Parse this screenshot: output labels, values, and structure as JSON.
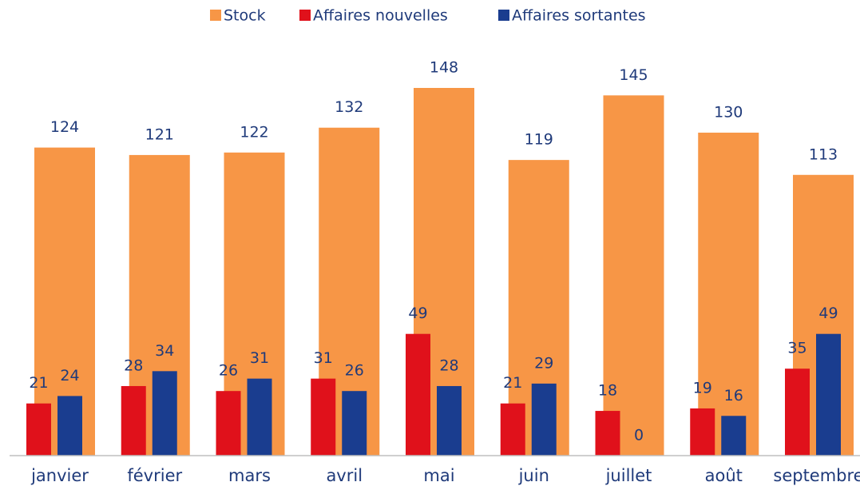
{
  "chart_data": {
    "type": "bar",
    "categories": [
      "janvier",
      "février",
      "mars",
      "avril",
      "mai",
      "juin",
      "juillet",
      "août",
      "septembre"
    ],
    "series": [
      {
        "name": "Stock",
        "color": "#f79646",
        "values": [
          124,
          121,
          122,
          132,
          148,
          119,
          145,
          130,
          113
        ]
      },
      {
        "name": "Affaires nouvelles",
        "color": "#e0111b",
        "values": [
          21,
          28,
          26,
          31,
          49,
          21,
          18,
          19,
          35
        ]
      },
      {
        "name": "Affaires sortantes",
        "color": "#1a3d8f",
        "values": [
          24,
          34,
          31,
          26,
          28,
          29,
          0,
          16,
          49
        ]
      }
    ],
    "legend": "top"
  }
}
